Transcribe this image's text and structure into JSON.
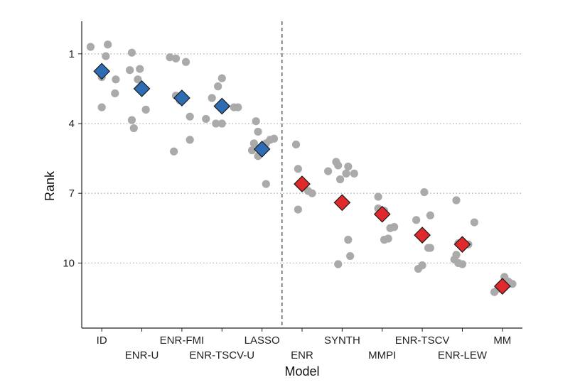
{
  "chart_data": {
    "type": "scatter",
    "xlabel": "Model",
    "ylabel": "Rank",
    "categories": [
      "ID",
      "ENR-U",
      "ENR-FMI",
      "ENR-TSCV-U",
      "LASSO",
      "ENR",
      "SYNTH",
      "MMPI",
      "ENR-TSCV",
      "ENR-LEW",
      "MM"
    ],
    "y_ticks": [
      1,
      4,
      7,
      10
    ],
    "ylim": [
      12.8,
      -0.4
    ],
    "y_reversed": true,
    "grid": "horizontal-dotted",
    "separator_between": [
      "LASSO",
      "ENR"
    ],
    "colors": {
      "points": "#aaaaaa",
      "group1": "#2e6db4",
      "group2": "#e0292a",
      "grid": "#b3b3b3"
    },
    "series": [
      {
        "role": "observations",
        "points": [
          {
            "cat": "ID",
            "dx": -0.28,
            "y": 0.7
          },
          {
            "cat": "ID",
            "dx": 0.15,
            "y": 0.6
          },
          {
            "cat": "ID",
            "dx": 0.1,
            "y": 1.1
          },
          {
            "cat": "ID",
            "dx": 0.0,
            "y": 2.0
          },
          {
            "cat": "ID",
            "dx": 0.35,
            "y": 2.1
          },
          {
            "cat": "ID",
            "dx": 0.33,
            "y": 2.7
          },
          {
            "cat": "ID",
            "dx": 0.0,
            "y": 3.3
          },
          {
            "cat": "ENR-U",
            "dx": -0.25,
            "y": 0.95
          },
          {
            "cat": "ENR-U",
            "dx": -0.3,
            "y": 1.7
          },
          {
            "cat": "ENR-U",
            "dx": -0.05,
            "y": 1.65
          },
          {
            "cat": "ENR-U",
            "dx": -0.1,
            "y": 2.1
          },
          {
            "cat": "ENR-U",
            "dx": -0.25,
            "y": 3.85
          },
          {
            "cat": "ENR-U",
            "dx": -0.2,
            "y": 4.2
          },
          {
            "cat": "ENR-U",
            "dx": 0.1,
            "y": 3.4
          },
          {
            "cat": "ENR-FMI",
            "dx": -0.3,
            "y": 1.15
          },
          {
            "cat": "ENR-FMI",
            "dx": -0.15,
            "y": 1.2
          },
          {
            "cat": "ENR-FMI",
            "dx": 0.1,
            "y": 1.35
          },
          {
            "cat": "ENR-FMI",
            "dx": -0.15,
            "y": 2.8
          },
          {
            "cat": "ENR-FMI",
            "dx": -0.05,
            "y": 3.0
          },
          {
            "cat": "ENR-FMI",
            "dx": 0.2,
            "y": 3.7
          },
          {
            "cat": "ENR-FMI",
            "dx": 0.2,
            "y": 4.7
          },
          {
            "cat": "ENR-FMI",
            "dx": -0.2,
            "y": 5.2
          },
          {
            "cat": "ENR-TSCV-U",
            "dx": -0.1,
            "y": 2.4
          },
          {
            "cat": "ENR-TSCV-U",
            "dx": 0.0,
            "y": 2.05
          },
          {
            "cat": "ENR-TSCV-U",
            "dx": -0.25,
            "y": 2.9
          },
          {
            "cat": "ENR-TSCV-U",
            "dx": -0.4,
            "y": 3.8
          },
          {
            "cat": "ENR-TSCV-U",
            "dx": -0.15,
            "y": 4.0
          },
          {
            "cat": "ENR-TSCV-U",
            "dx": 0.0,
            "y": 4.0
          },
          {
            "cat": "ENR-TSCV-U",
            "dx": 0.3,
            "y": 3.3
          },
          {
            "cat": "ENR-TSCV-U",
            "dx": 0.4,
            "y": 3.3
          },
          {
            "cat": "LASSO",
            "dx": -0.15,
            "y": 3.9
          },
          {
            "cat": "LASSO",
            "dx": -0.1,
            "y": 4.35
          },
          {
            "cat": "LASSO",
            "dx": -0.2,
            "y": 4.85
          },
          {
            "cat": "LASSO",
            "dx": -0.25,
            "y": 5.15
          },
          {
            "cat": "LASSO",
            "dx": -0.1,
            "y": 5.4
          },
          {
            "cat": "LASSO",
            "dx": 0.1,
            "y": 4.85
          },
          {
            "cat": "LASSO",
            "dx": 0.2,
            "y": 4.7
          },
          {
            "cat": "LASSO",
            "dx": 0.3,
            "y": 4.65
          },
          {
            "cat": "LASSO",
            "dx": 0.1,
            "y": 6.6
          },
          {
            "cat": "ENR",
            "dx": -0.15,
            "y": 4.9
          },
          {
            "cat": "ENR",
            "dx": -0.1,
            "y": 5.95
          },
          {
            "cat": "ENR",
            "dx": 0.05,
            "y": 6.6
          },
          {
            "cat": "ENR",
            "dx": 0.15,
            "y": 6.9
          },
          {
            "cat": "ENR",
            "dx": 0.25,
            "y": 7.0
          },
          {
            "cat": "ENR",
            "dx": -0.1,
            "y": 7.7
          },
          {
            "cat": "SYNTH",
            "dx": -0.35,
            "y": 6.05
          },
          {
            "cat": "SYNTH",
            "dx": -0.15,
            "y": 5.65
          },
          {
            "cat": "SYNTH",
            "dx": -0.1,
            "y": 5.8
          },
          {
            "cat": "SYNTH",
            "dx": -0.05,
            "y": 6.4
          },
          {
            "cat": "SYNTH",
            "dx": 0.1,
            "y": 6.15
          },
          {
            "cat": "SYNTH",
            "dx": 0.15,
            "y": 5.85
          },
          {
            "cat": "SYNTH",
            "dx": 0.3,
            "y": 6.15
          },
          {
            "cat": "SYNTH",
            "dx": 0.15,
            "y": 9.0
          },
          {
            "cat": "SYNTH",
            "dx": 0.2,
            "y": 9.7
          },
          {
            "cat": "SYNTH",
            "dx": -0.1,
            "y": 10.05
          },
          {
            "cat": "MMPI",
            "dx": -0.1,
            "y": 7.15
          },
          {
            "cat": "MMPI",
            "dx": -0.1,
            "y": 7.65
          },
          {
            "cat": "MMPI",
            "dx": 0.05,
            "y": 7.75
          },
          {
            "cat": "MMPI",
            "dx": 0.2,
            "y": 8.5
          },
          {
            "cat": "MMPI",
            "dx": 0.3,
            "y": 8.45
          },
          {
            "cat": "MMPI",
            "dx": 0.05,
            "y": 9.0
          },
          {
            "cat": "MMPI",
            "dx": 0.15,
            "y": 8.95
          },
          {
            "cat": "ENR-TSCV",
            "dx": -0.15,
            "y": 8.15
          },
          {
            "cat": "ENR-TSCV",
            "dx": 0.05,
            "y": 6.95
          },
          {
            "cat": "ENR-TSCV",
            "dx": 0.15,
            "y": 9.35
          },
          {
            "cat": "ENR-TSCV",
            "dx": 0.2,
            "y": 9.35
          },
          {
            "cat": "ENR-TSCV",
            "dx": 0.2,
            "y": 7.95
          },
          {
            "cat": "ENR-TSCV",
            "dx": 0.0,
            "y": 10.1
          },
          {
            "cat": "ENR-TSCV",
            "dx": -0.1,
            "y": 10.25
          },
          {
            "cat": "ENR-LEW",
            "dx": -0.15,
            "y": 7.3
          },
          {
            "cat": "ENR-LEW",
            "dx": -0.1,
            "y": 9.15
          },
          {
            "cat": "ENR-LEW",
            "dx": -0.15,
            "y": 9.65
          },
          {
            "cat": "ENR-LEW",
            "dx": -0.2,
            "y": 9.85
          },
          {
            "cat": "ENR-LEW",
            "dx": -0.1,
            "y": 10.0
          },
          {
            "cat": "ENR-LEW",
            "dx": 0.0,
            "y": 10.05
          },
          {
            "cat": "ENR-LEW",
            "dx": 0.15,
            "y": 9.2
          },
          {
            "cat": "ENR-LEW",
            "dx": 0.3,
            "y": 8.25
          },
          {
            "cat": "MM",
            "dx": -0.2,
            "y": 11.25
          },
          {
            "cat": "MM",
            "dx": -0.1,
            "y": 11.1
          },
          {
            "cat": "MM",
            "dx": -0.05,
            "y": 10.95
          },
          {
            "cat": "MM",
            "dx": 0.05,
            "y": 10.6
          },
          {
            "cat": "MM",
            "dx": 0.15,
            "y": 10.8
          },
          {
            "cat": "MM",
            "dx": 0.25,
            "y": 10.9
          }
        ]
      },
      {
        "role": "mean-group1",
        "marker": "diamond",
        "categories": [
          "ID",
          "ENR-U",
          "ENR-FMI",
          "ENR-TSCV-U",
          "LASSO"
        ],
        "values": [
          1.75,
          2.5,
          2.9,
          3.25,
          5.1
        ]
      },
      {
        "role": "mean-group2",
        "marker": "diamond",
        "categories": [
          "ENR",
          "SYNTH",
          "MMPI",
          "ENR-TSCV",
          "ENR-LEW",
          "MM"
        ],
        "values": [
          6.6,
          7.4,
          7.9,
          8.8,
          9.2,
          11.0
        ]
      }
    ]
  }
}
